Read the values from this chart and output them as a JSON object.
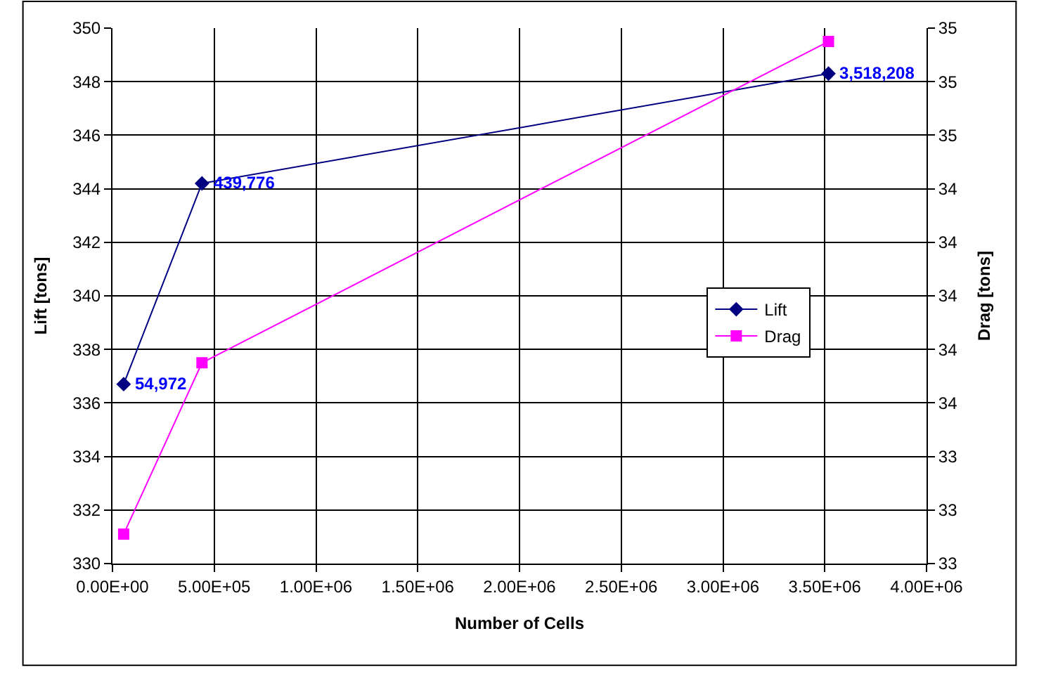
{
  "chart_data": {
    "type": "line",
    "xlabel": "Number of Cells",
    "ylabel": "Lift [tons]",
    "y2label": "Drag [tons]",
    "x": [
      54972,
      439776,
      3518208
    ],
    "series": [
      {
        "name": "Lift",
        "color": "#000080",
        "values": [
          336.7,
          344.2,
          348.3
        ],
        "marker": "diamond"
      },
      {
        "name": "Drag",
        "color": "#ff00ff",
        "values": [
          33.11,
          33.75,
          34.95
        ],
        "marker": "square",
        "axis": "y2"
      }
    ],
    "xlim": [
      0,
      4000000
    ],
    "xticks": [
      {
        "value": 0,
        "label": "0.00E+00"
      },
      {
        "value": 500000,
        "label": "5.00E+05"
      },
      {
        "value": 1000000,
        "label": "1.00E+06"
      },
      {
        "value": 1500000,
        "label": "1.50E+06"
      },
      {
        "value": 2000000,
        "label": "2.00E+06"
      },
      {
        "value": 2500000,
        "label": "2.50E+06"
      },
      {
        "value": 3000000,
        "label": "3.00E+06"
      },
      {
        "value": 3500000,
        "label": "3.50E+06"
      },
      {
        "value": 4000000,
        "label": "4.00E+06"
      }
    ],
    "ylim": [
      330,
      350
    ],
    "yticks": [
      330,
      332,
      334,
      336,
      338,
      340,
      342,
      344,
      346,
      348,
      350
    ],
    "y2lim": [
      33.0,
      35.0
    ],
    "y2ticks": [
      {
        "value": 33.0,
        "label": "33"
      },
      {
        "value": 33.2,
        "label": "33"
      },
      {
        "value": 33.4,
        "label": "33"
      },
      {
        "value": 33.6,
        "label": "34"
      },
      {
        "value": 33.8,
        "label": "34"
      },
      {
        "value": 34.0,
        "label": "34"
      },
      {
        "value": 34.2,
        "label": "34"
      },
      {
        "value": 34.4,
        "label": "34"
      },
      {
        "value": 34.6,
        "label": "35"
      },
      {
        "value": 34.8,
        "label": "35"
      },
      {
        "value": 35.0,
        "label": "35"
      }
    ],
    "annotations": [
      {
        "text": "54,972",
        "x": 54972,
        "y": 336.7
      },
      {
        "text": "439,776",
        "x": 439776,
        "y": 344.2
      },
      {
        "text": "3,518,208",
        "x": 3518208,
        "y": 348.3
      }
    ],
    "grid": true,
    "legend": "right",
    "line_style": "solid"
  }
}
